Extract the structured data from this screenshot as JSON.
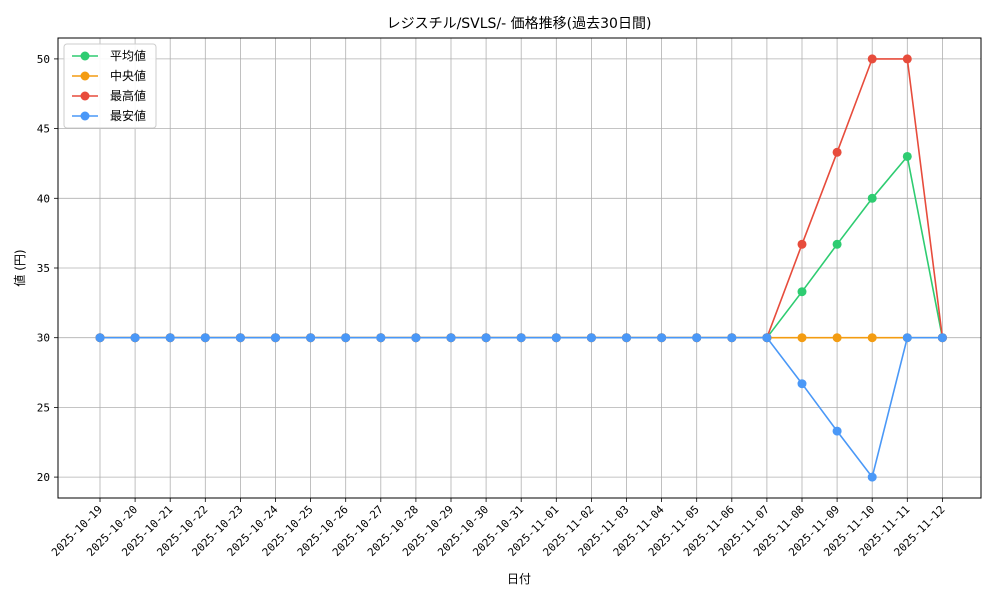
{
  "chart_data": {
    "type": "line",
    "title": "レジスチル/SVLS/- 価格推移(過去30日間)",
    "xlabel": "日付",
    "ylabel": "値 (円)",
    "ylim": [
      18.5,
      51.5
    ],
    "yticks": [
      20,
      25,
      30,
      35,
      40,
      45,
      50
    ],
    "grid": true,
    "legend_position": "top-left",
    "categories": [
      "2025-10-19",
      "2025-10-20",
      "2025-10-21",
      "2025-10-22",
      "2025-10-23",
      "2025-10-24",
      "2025-10-25",
      "2025-10-26",
      "2025-10-27",
      "2025-10-28",
      "2025-10-29",
      "2025-10-30",
      "2025-10-31",
      "2025-11-01",
      "2025-11-02",
      "2025-11-03",
      "2025-11-04",
      "2025-11-05",
      "2025-11-06",
      "2025-11-07",
      "2025-11-08",
      "2025-11-09",
      "2025-11-10",
      "2025-11-11",
      "2025-11-12"
    ],
    "series": [
      {
        "name": "平均値",
        "color": "#2ecc71",
        "values": [
          30,
          30,
          30,
          30,
          30,
          30,
          30,
          30,
          30,
          30,
          30,
          30,
          30,
          30,
          30,
          30,
          30,
          30,
          30,
          30,
          33.3,
          36.7,
          40,
          43,
          30
        ]
      },
      {
        "name": "中央値",
        "color": "#f39c12",
        "values": [
          30,
          30,
          30,
          30,
          30,
          30,
          30,
          30,
          30,
          30,
          30,
          30,
          30,
          30,
          30,
          30,
          30,
          30,
          30,
          30,
          30,
          30,
          30,
          30,
          30
        ]
      },
      {
        "name": "最高値",
        "color": "#e74c3c",
        "values": [
          30,
          30,
          30,
          30,
          30,
          30,
          30,
          30,
          30,
          30,
          30,
          30,
          30,
          30,
          30,
          30,
          30,
          30,
          30,
          30,
          36.7,
          43.3,
          50,
          50,
          30
        ]
      },
      {
        "name": "最安値",
        "color": "#4a98f7",
        "values": [
          30,
          30,
          30,
          30,
          30,
          30,
          30,
          30,
          30,
          30,
          30,
          30,
          30,
          30,
          30,
          30,
          30,
          30,
          30,
          30,
          26.7,
          23.3,
          20,
          30,
          30
        ]
      }
    ]
  }
}
